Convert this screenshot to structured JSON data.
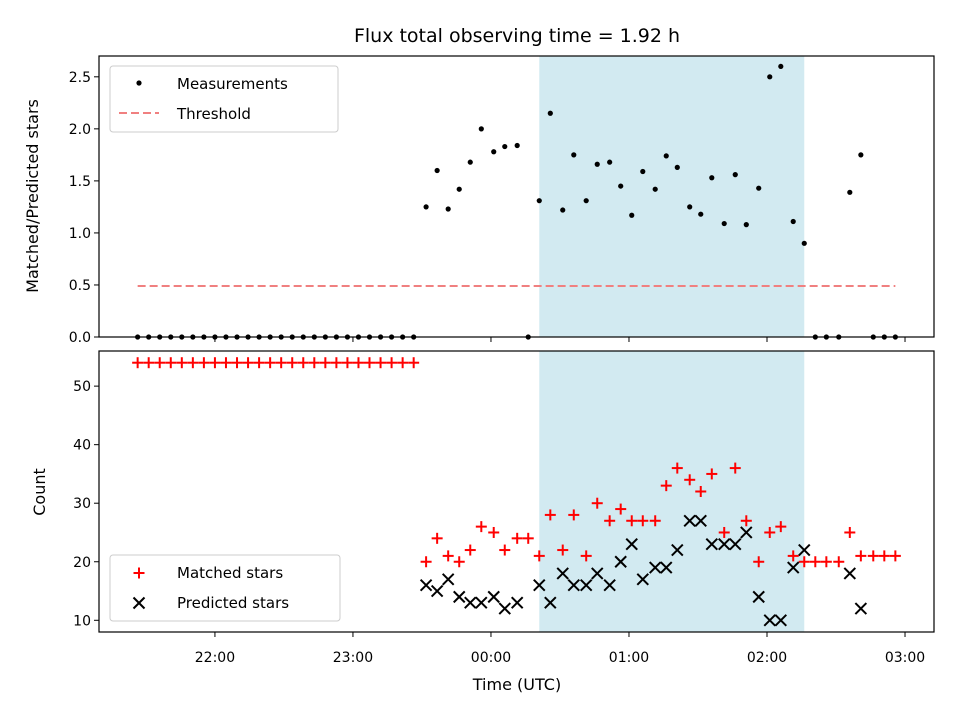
{
  "title": "Flux total observing time = 1.92 h",
  "xlabel": "Time (UTC)",
  "x_ticks": [
    "22:00",
    "23:00",
    "00:00",
    "01:00",
    "02:00",
    "03:00"
  ],
  "colors": {
    "measurements": "#000000",
    "threshold": "#f08080",
    "matched": "#ff0000",
    "predicted": "#000000",
    "span": "#add8e6"
  },
  "chart_data": [
    {
      "type": "scatter",
      "ylabel": "Matched/Predicted stars",
      "ylim": [
        0,
        2.7
      ],
      "xlim_hours": [
        -2.84,
        3.21
      ],
      "x_unit": "hours relative to 00:00 UTC",
      "y_ticks": [
        "0.0",
        "0.5",
        "1.0",
        "1.5",
        "2.0",
        "2.5"
      ],
      "highlight_span_hours": [
        0.35,
        2.27
      ],
      "legend_position": "upper-left",
      "series": [
        {
          "name": "Measurements",
          "marker": "dot",
          "points": [
            [
              -2.56,
              0
            ],
            [
              -2.48,
              0
            ],
            [
              -2.4,
              0
            ],
            [
              -2.32,
              0
            ],
            [
              -2.24,
              0
            ],
            [
              -2.16,
              0
            ],
            [
              -2.08,
              0
            ],
            [
              -2,
              0
            ],
            [
              -1.92,
              0
            ],
            [
              -1.84,
              0
            ],
            [
              -1.76,
              0
            ],
            [
              -1.68,
              0
            ],
            [
              -1.6,
              0
            ],
            [
              -1.52,
              0
            ],
            [
              -1.44,
              0
            ],
            [
              -1.36,
              0
            ],
            [
              -1.28,
              0
            ],
            [
              -1.2,
              0
            ],
            [
              -1.12,
              0
            ],
            [
              -1.04,
              0
            ],
            [
              -0.96,
              0
            ],
            [
              -0.88,
              0
            ],
            [
              -0.8,
              0
            ],
            [
              -0.72,
              0
            ],
            [
              -0.64,
              0
            ],
            [
              -0.56,
              0
            ],
            [
              -0.47,
              1.25
            ],
            [
              -0.39,
              1.6
            ],
            [
              -0.31,
              1.23
            ],
            [
              -0.23,
              1.42
            ],
            [
              -0.15,
              1.68
            ],
            [
              -0.07,
              2.0
            ],
            [
              0.02,
              1.78
            ],
            [
              0.1,
              1.83
            ],
            [
              0.19,
              1.84
            ],
            [
              0.27,
              0
            ],
            [
              0.35,
              1.31
            ],
            [
              0.43,
              2.15
            ],
            [
              0.52,
              1.22
            ],
            [
              0.6,
              1.75
            ],
            [
              0.69,
              1.31
            ],
            [
              0.77,
              1.66
            ],
            [
              0.86,
              1.68
            ],
            [
              0.94,
              1.45
            ],
            [
              1.02,
              1.17
            ],
            [
              1.1,
              1.59
            ],
            [
              1.19,
              1.42
            ],
            [
              1.27,
              1.74
            ],
            [
              1.35,
              1.63
            ],
            [
              1.44,
              1.25
            ],
            [
              1.52,
              1.18
            ],
            [
              1.6,
              1.53
            ],
            [
              1.69,
              1.09
            ],
            [
              1.77,
              1.56
            ],
            [
              1.85,
              1.08
            ],
            [
              1.94,
              1.43
            ],
            [
              2.02,
              2.5
            ],
            [
              2.1,
              2.6
            ],
            [
              2.19,
              1.11
            ],
            [
              2.27,
              0.9
            ],
            [
              2.35,
              0
            ],
            [
              2.43,
              0
            ],
            [
              2.52,
              0
            ],
            [
              2.6,
              1.39
            ],
            [
              2.68,
              1.75
            ],
            [
              2.77,
              0
            ],
            [
              2.85,
              0
            ],
            [
              2.93,
              0
            ]
          ]
        },
        {
          "name": "Threshold",
          "style": "dashed",
          "x": [
            -2.56,
            2.93
          ],
          "y": [
            0.49,
            0.49
          ]
        }
      ]
    },
    {
      "type": "scatter",
      "ylabel": "Count",
      "ylim": [
        8,
        56
      ],
      "xlim_hours": [
        -2.84,
        3.21
      ],
      "y_ticks": [
        "10",
        "20",
        "30",
        "40",
        "50"
      ],
      "highlight_span_hours": [
        0.35,
        2.27
      ],
      "legend_position": "lower-left",
      "series": [
        {
          "name": "Matched stars",
          "marker": "plus",
          "points": [
            [
              -2.56,
              54
            ],
            [
              -2.48,
              54
            ],
            [
              -2.4,
              54
            ],
            [
              -2.32,
              54
            ],
            [
              -2.24,
              54
            ],
            [
              -2.16,
              54
            ],
            [
              -2.08,
              54
            ],
            [
              -2,
              54
            ],
            [
              -1.92,
              54
            ],
            [
              -1.84,
              54
            ],
            [
              -1.76,
              54
            ],
            [
              -1.68,
              54
            ],
            [
              -1.6,
              54
            ],
            [
              -1.52,
              54
            ],
            [
              -1.44,
              54
            ],
            [
              -1.36,
              54
            ],
            [
              -1.28,
              54
            ],
            [
              -1.2,
              54
            ],
            [
              -1.12,
              54
            ],
            [
              -1.04,
              54
            ],
            [
              -0.96,
              54
            ],
            [
              -0.88,
              54
            ],
            [
              -0.8,
              54
            ],
            [
              -0.72,
              54
            ],
            [
              -0.64,
              54
            ],
            [
              -0.56,
              54
            ],
            [
              -0.47,
              20
            ],
            [
              -0.39,
              24
            ],
            [
              -0.31,
              21
            ],
            [
              -0.23,
              20
            ],
            [
              -0.15,
              22
            ],
            [
              -0.07,
              26
            ],
            [
              0.02,
              25
            ],
            [
              0.1,
              22
            ],
            [
              0.19,
              24
            ],
            [
              0.27,
              24
            ],
            [
              0.35,
              21
            ],
            [
              0.43,
              28
            ],
            [
              0.52,
              22
            ],
            [
              0.6,
              28
            ],
            [
              0.69,
              21
            ],
            [
              0.77,
              30
            ],
            [
              0.86,
              27
            ],
            [
              0.94,
              29
            ],
            [
              1.02,
              27
            ],
            [
              1.1,
              27
            ],
            [
              1.19,
              27
            ],
            [
              1.27,
              33
            ],
            [
              1.35,
              36
            ],
            [
              1.44,
              34
            ],
            [
              1.52,
              32
            ],
            [
              1.6,
              35
            ],
            [
              1.69,
              25
            ],
            [
              1.77,
              36
            ],
            [
              1.85,
              27
            ],
            [
              1.94,
              20
            ],
            [
              2.02,
              25
            ],
            [
              2.1,
              26
            ],
            [
              2.19,
              21
            ],
            [
              2.27,
              20
            ],
            [
              2.35,
              20
            ],
            [
              2.43,
              20
            ],
            [
              2.52,
              20
            ],
            [
              2.6,
              25
            ],
            [
              2.68,
              21
            ],
            [
              2.77,
              21
            ],
            [
              2.85,
              21
            ],
            [
              2.93,
              21
            ]
          ]
        },
        {
          "name": "Predicted stars",
          "marker": "x",
          "points": [
            [
              -0.47,
              16
            ],
            [
              -0.39,
              15
            ],
            [
              -0.31,
              17
            ],
            [
              -0.23,
              14
            ],
            [
              -0.15,
              13
            ],
            [
              -0.07,
              13
            ],
            [
              0.02,
              14
            ],
            [
              0.1,
              12
            ],
            [
              0.19,
              13
            ],
            [
              0.35,
              16
            ],
            [
              0.43,
              13
            ],
            [
              0.52,
              18
            ],
            [
              0.6,
              16
            ],
            [
              0.69,
              16
            ],
            [
              0.77,
              18
            ],
            [
              0.86,
              16
            ],
            [
              0.94,
              20
            ],
            [
              1.02,
              23
            ],
            [
              1.1,
              17
            ],
            [
              1.19,
              19
            ],
            [
              1.27,
              19
            ],
            [
              1.35,
              22
            ],
            [
              1.44,
              27
            ],
            [
              1.52,
              27
            ],
            [
              1.6,
              23
            ],
            [
              1.69,
              23
            ],
            [
              1.77,
              23
            ],
            [
              1.85,
              25
            ],
            [
              1.94,
              14
            ],
            [
              2.02,
              10
            ],
            [
              2.1,
              10
            ],
            [
              2.19,
              19
            ],
            [
              2.27,
              22
            ],
            [
              2.6,
              18
            ],
            [
              2.68,
              12
            ]
          ]
        }
      ]
    }
  ]
}
